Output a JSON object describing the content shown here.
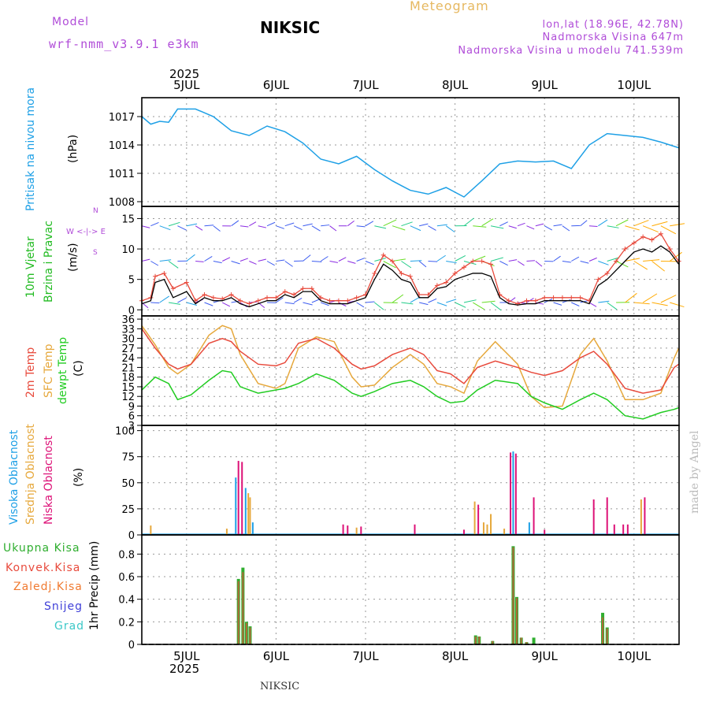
{
  "header": {
    "model_label": "Model",
    "model_name": "wrf-nmm_v3.9.1  e3km",
    "station": "NIKSIC",
    "chart_title": "Meteogram",
    "lonlat": "lon,lat (18.96E, 42.78N)",
    "altitude": "Nadmorska Visina 647m",
    "model_altitude": "Nadmorska Visina u modelu 741.539m",
    "year": "2025",
    "footer_station": "NIKSIC",
    "watermark": "made by Angel"
  },
  "colors": {
    "pressure": "#1ea0e6",
    "temp2m": "#e84a3c",
    "sfc": "#e6a83c",
    "dewpt": "#22cc22",
    "high_cloud": "#1ea0e6",
    "mid_cloud": "#e6a83c",
    "low_cloud": "#dd1177",
    "total_precip": "#2fae2f",
    "conv_precip": "#e84a3c",
    "frozen_precip": "#f07a30",
    "snow": "#4040d8",
    "graupel": "#3cc8c8",
    "wind_speed": "#e84a3c",
    "wind_gust": "#000000",
    "grid": "#999999"
  },
  "chart_data": [
    {
      "type": "line",
      "name": "pressure",
      "ylabel_primary": "Pritisak na nivou mora",
      "ylabel_unit": "(hPa)",
      "ylim": [
        1007.5,
        1019
      ],
      "yticks": [
        1008,
        1011,
        1014,
        1017
      ],
      "x_days": [
        0,
        0.1,
        0.2,
        0.3,
        0.4,
        0.6,
        0.8,
        1.0,
        1.2,
        1.4,
        1.6,
        1.8,
        2.0,
        2.2,
        2.4,
        2.6,
        2.8,
        3.0,
        3.2,
        3.4,
        3.6,
        3.8,
        4.0,
        4.2,
        4.4,
        4.6,
        4.8,
        5.0,
        5.2,
        5.4,
        5.6,
        5.8,
        6.0
      ],
      "values": [
        1017,
        1016.2,
        1016.5,
        1016.4,
        1017.8,
        1017.8,
        1017,
        1015.5,
        1015,
        1016,
        1015.4,
        1014.2,
        1012.5,
        1012,
        1012.8,
        1011.4,
        1010.2,
        1009.2,
        1008.8,
        1009.5,
        1008.5,
        1010.2,
        1012,
        1012.3,
        1012.2,
        1012.3,
        1011.5,
        1014,
        1015.2,
        1015,
        1014.8,
        1014.3,
        1013.7
      ]
    },
    {
      "type": "line",
      "name": "wind",
      "ylabel_primary": "10m Vjetar",
      "ylabel_secondary": "Brzina i Pravac",
      "ylabel_unit": "(m/s)",
      "compass": "W <-|-> E",
      "compass_ns": "N",
      "compass_s": "S",
      "ylim": [
        -1,
        17
      ],
      "yticks": [
        0,
        5,
        10,
        15
      ],
      "x_days": [
        0,
        0.1,
        0.15,
        0.25,
        0.35,
        0.5,
        0.6,
        0.7,
        0.8,
        0.9,
        1.0,
        1.1,
        1.2,
        1.3,
        1.4,
        1.5,
        1.6,
        1.7,
        1.8,
        1.9,
        2.0,
        2.1,
        2.2,
        2.3,
        2.4,
        2.5,
        2.6,
        2.7,
        2.8,
        2.9,
        3.0,
        3.1,
        3.2,
        3.3,
        3.4,
        3.5,
        3.6,
        3.7,
        3.8,
        3.9,
        4.0,
        4.1,
        4.2,
        4.3,
        4.4,
        4.5,
        4.6,
        4.7,
        4.8,
        4.9,
        5.0,
        5.1,
        5.2,
        5.3,
        5.4,
        5.5,
        5.6,
        5.7,
        5.8,
        5.9,
        6.0
      ],
      "speed": [
        1.5,
        2,
        5.5,
        6,
        3.5,
        4.5,
        1.5,
        2.5,
        2,
        1.8,
        2.5,
        1.5,
        1,
        1.5,
        2,
        2,
        3,
        2.5,
        3.5,
        3.5,
        2,
        1.5,
        1.5,
        1.5,
        2,
        2.5,
        6,
        9,
        8,
        6,
        5.5,
        2.5,
        2.5,
        4,
        4.5,
        6,
        7,
        8,
        8,
        7.5,
        2.5,
        1.5,
        1,
        1.5,
        1.5,
        2,
        2,
        2,
        2,
        2,
        1.5,
        5,
        6,
        8,
        10,
        11,
        12,
        11.5,
        12.5,
        10,
        8
      ],
      "gust": [
        1,
        1.5,
        4.5,
        5,
        2,
        3,
        1,
        2,
        1.5,
        1.5,
        2,
        1,
        0.5,
        1,
        1.5,
        1.5,
        2.5,
        2,
        3,
        3,
        1.5,
        1,
        1,
        1,
        1.5,
        2,
        5,
        7.5,
        6.5,
        5,
        4.5,
        2,
        2,
        3.5,
        3.8,
        5,
        5.5,
        6,
        6,
        5.5,
        2,
        1,
        0.8,
        1,
        1,
        1.5,
        1.5,
        1.5,
        1.5,
        1.5,
        1,
        4,
        5,
        6.5,
        8,
        9.5,
        10,
        9.5,
        10.5,
        9.5,
        7.5
      ]
    },
    {
      "type": "line",
      "name": "temperature",
      "ylabel_primary": "2m Temp",
      "ylabel_secondary": "SFC Temp",
      "ylabel_tertiary": "dewpt Temp",
      "ylabel_unit": "(C)",
      "ylim": [
        3,
        37
      ],
      "yticks": [
        3,
        6,
        9,
        12,
        15,
        18,
        21,
        24,
        27,
        30,
        33,
        36
      ],
      "x_days": [
        0,
        0.15,
        0.3,
        0.4,
        0.55,
        0.75,
        0.9,
        1.0,
        1.1,
        1.3,
        1.5,
        1.6,
        1.75,
        1.95,
        2.15,
        2.35,
        2.45,
        2.6,
        2.8,
        3.0,
        3.15,
        3.3,
        3.45,
        3.6,
        3.75,
        3.95,
        4.2,
        4.35,
        4.5,
        4.7,
        4.9,
        5.05,
        5.2,
        5.4,
        5.6,
        5.8,
        5.95,
        6.0
      ],
      "t2m": [
        33,
        27,
        22,
        20.5,
        22,
        28.5,
        30,
        29,
        26,
        22,
        21.5,
        22.5,
        28.5,
        30,
        27,
        22,
        20.5,
        21.5,
        25,
        27,
        25,
        20,
        19,
        16,
        21,
        23,
        21,
        19.5,
        18.5,
        20,
        24,
        26,
        22,
        14.5,
        13,
        14,
        21,
        22
      ],
      "sfc": [
        34,
        28,
        21,
        19,
        22,
        31,
        34,
        33,
        25,
        16,
        14.5,
        16,
        27,
        30.5,
        29,
        18,
        15,
        15.5,
        21,
        25,
        22,
        16,
        15,
        13,
        23,
        29,
        22,
        12,
        8.5,
        9,
        25,
        30,
        23,
        11,
        11,
        13,
        24,
        27
      ],
      "dewpt": [
        14,
        18,
        16,
        11,
        12.5,
        17,
        20,
        19.5,
        15,
        13,
        14,
        14.5,
        16,
        19,
        17,
        13,
        12,
        13.5,
        16,
        17,
        15,
        12,
        10,
        10.5,
        14,
        17,
        16,
        12,
        10,
        8,
        11,
        13,
        11,
        6,
        5,
        7,
        8,
        8.5
      ]
    },
    {
      "type": "bar",
      "name": "cloud_cover",
      "ylabel_primary": "Visoka Oblacnost",
      "ylabel_secondary": "Srednja Oblacnost",
      "ylabel_tertiary": "Niska Oblacnost",
      "ylabel_unit": "(%)",
      "ylim": [
        0,
        105
      ],
      "yticks": [
        0,
        25,
        50,
        75,
        100
      ],
      "bars": [
        {
          "x": 0.1,
          "layer": "mid",
          "v": 9
        },
        {
          "x": 0.95,
          "layer": "mid",
          "v": 6
        },
        {
          "x": 1.05,
          "layer": "high",
          "v": 55
        },
        {
          "x": 1.08,
          "layer": "low",
          "v": 71
        },
        {
          "x": 1.12,
          "layer": "low",
          "v": 70
        },
        {
          "x": 1.16,
          "layer": "high",
          "v": 45
        },
        {
          "x": 1.19,
          "layer": "mid",
          "v": 40
        },
        {
          "x": 1.21,
          "layer": "mid",
          "v": 36
        },
        {
          "x": 1.24,
          "layer": "high",
          "v": 12
        },
        {
          "x": 2.25,
          "layer": "low",
          "v": 10
        },
        {
          "x": 2.3,
          "layer": "low",
          "v": 9
        },
        {
          "x": 2.4,
          "layer": "mid",
          "v": 7
        },
        {
          "x": 2.45,
          "layer": "low",
          "v": 8
        },
        {
          "x": 3.05,
          "layer": "low",
          "v": 10
        },
        {
          "x": 3.6,
          "layer": "low",
          "v": 5
        },
        {
          "x": 3.72,
          "layer": "mid",
          "v": 32
        },
        {
          "x": 3.76,
          "layer": "low",
          "v": 29
        },
        {
          "x": 3.82,
          "layer": "mid",
          "v": 12
        },
        {
          "x": 3.86,
          "layer": "mid",
          "v": 10
        },
        {
          "x": 3.9,
          "layer": "mid",
          "v": 20
        },
        {
          "x": 4.05,
          "layer": "mid",
          "v": 6
        },
        {
          "x": 4.12,
          "layer": "low",
          "v": 79
        },
        {
          "x": 4.15,
          "layer": "high",
          "v": 80
        },
        {
          "x": 4.18,
          "layer": "low",
          "v": 78
        },
        {
          "x": 4.33,
          "layer": "high",
          "v": 12
        },
        {
          "x": 4.38,
          "layer": "low",
          "v": 36
        },
        {
          "x": 4.5,
          "layer": "low",
          "v": 5
        },
        {
          "x": 5.05,
          "layer": "low",
          "v": 34
        },
        {
          "x": 5.2,
          "layer": "low",
          "v": 36
        },
        {
          "x": 5.28,
          "layer": "low",
          "v": 10
        },
        {
          "x": 5.38,
          "layer": "low",
          "v": 10
        },
        {
          "x": 5.43,
          "layer": "low",
          "v": 10
        },
        {
          "x": 5.58,
          "layer": "mid",
          "v": 34
        },
        {
          "x": 5.62,
          "layer": "low",
          "v": 36
        }
      ]
    },
    {
      "type": "bar",
      "name": "precipitation",
      "ylabel_primary": "1hr Precip (mm)",
      "legend": [
        "Ukupna Kisa",
        "Konvek.Kisa",
        "Zaledj.Kisa",
        "Snijeg",
        "Grad"
      ],
      "ylim": [
        0,
        0.97
      ],
      "yticks": [
        0,
        0.2,
        0.4,
        0.6,
        0.8
      ],
      "bars": [
        {
          "x": 1.08,
          "total": 0.58,
          "conv": 0.56
        },
        {
          "x": 1.13,
          "total": 0.68,
          "conv": 0.64
        },
        {
          "x": 1.17,
          "total": 0.2,
          "conv": 0.19
        },
        {
          "x": 1.21,
          "total": 0.16,
          "conv": 0.15
        },
        {
          "x": 3.73,
          "total": 0.08,
          "conv": 0.07
        },
        {
          "x": 3.77,
          "total": 0.07,
          "conv": 0.07
        },
        {
          "x": 3.92,
          "total": 0.03,
          "conv": 0.03
        },
        {
          "x": 4.15,
          "total": 0.87,
          "conv": 0.86
        },
        {
          "x": 4.19,
          "total": 0.42,
          "conv": 0.41
        },
        {
          "x": 4.24,
          "total": 0.06,
          "conv": 0.06
        },
        {
          "x": 4.3,
          "total": 0.02,
          "conv": 0.02
        },
        {
          "x": 4.38,
          "total": 0.06,
          "conv": 0.0
        },
        {
          "x": 5.15,
          "total": 0.28,
          "conv": 0.24
        },
        {
          "x": 5.2,
          "total": 0.15,
          "conv": 0.14
        }
      ]
    }
  ],
  "x_axis": {
    "start_day": "4.5",
    "tick_labels": [
      "5JUL",
      "6JUL",
      "7JUL",
      "8JUL",
      "9JUL",
      "10JUL"
    ],
    "tick_days": [
      0.5,
      1.5,
      2.5,
      3.5,
      4.5,
      5.5
    ]
  }
}
